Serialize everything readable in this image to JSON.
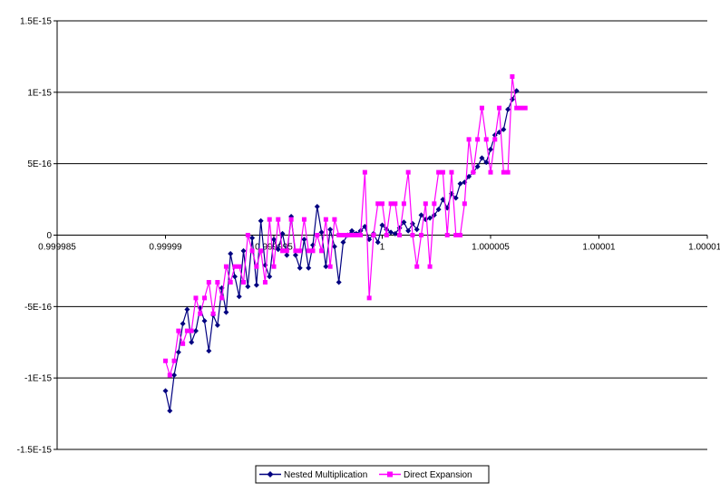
{
  "chart_data": {
    "type": "line",
    "title": "",
    "xlabel": "",
    "ylabel": "",
    "xlim": [
      0.999985,
      1.000015
    ],
    "ylim": [
      -1.5e-15,
      1.5e-15
    ],
    "x_ticks": [
      {
        "value": 0.999985,
        "label": "0.999985"
      },
      {
        "value": 0.99999,
        "label": "0.99999"
      },
      {
        "value": 0.999995,
        "label": "0.999995"
      },
      {
        "value": 1.0,
        "label": "1"
      },
      {
        "value": 1.000005,
        "label": "1.000005"
      },
      {
        "value": 1.00001,
        "label": "1.00001"
      },
      {
        "value": 1.000015,
        "label": "1.000015"
      }
    ],
    "y_ticks": [
      {
        "value": 1.5e-15,
        "label": "1.5E-15"
      },
      {
        "value": 1e-15,
        "label": "1E-15"
      },
      {
        "value": 5e-16,
        "label": "5E-16"
      },
      {
        "value": 0,
        "label": "0"
      },
      {
        "value": -5e-16,
        "label": "-5E-16"
      },
      {
        "value": -1e-15,
        "label": "-1E-15"
      },
      {
        "value": -1.5e-15,
        "label": "-1.5E-15"
      }
    ],
    "grid": "horizontal major gridlines",
    "legend_position": "bottom",
    "series": [
      {
        "name": "Nested Multiplication",
        "color": "#000080",
        "marker": "diamond",
        "points": [
          [
            0.99999,
            -1.09e-15
          ],
          [
            0.9999902,
            -1.23e-15
          ],
          [
            0.9999904,
            -9.8e-16
          ],
          [
            0.9999906,
            -8.2e-16
          ],
          [
            0.9999908,
            -6.2e-16
          ],
          [
            0.999991,
            -5.2e-16
          ],
          [
            0.9999912,
            -7.5e-16
          ],
          [
            0.9999914,
            -6.7e-16
          ],
          [
            0.9999916,
            -5.1e-16
          ],
          [
            0.9999918,
            -6e-16
          ],
          [
            0.999992,
            -8.1e-16
          ],
          [
            0.9999922,
            -5.6e-16
          ],
          [
            0.9999924,
            -6.3e-16
          ],
          [
            0.9999926,
            -3.7e-16
          ],
          [
            0.9999928,
            -5.4e-16
          ],
          [
            0.999993,
            -1.3e-16
          ],
          [
            0.9999932,
            -2.9e-16
          ],
          [
            0.9999934,
            -4.3e-16
          ],
          [
            0.9999936,
            -1.1e-16
          ],
          [
            0.9999938,
            -3.6e-16
          ],
          [
            0.999994,
            -2e-17
          ],
          [
            0.9999942,
            -3.5e-16
          ],
          [
            0.9999944,
            1e-16
          ],
          [
            0.9999946,
            -2.1e-16
          ],
          [
            0.9999948,
            -2.9e-16
          ],
          [
            0.999995,
            -3e-17
          ],
          [
            0.9999952,
            -1e-16
          ],
          [
            0.9999954,
            1e-17
          ],
          [
            0.9999956,
            -1.4e-16
          ],
          [
            0.9999958,
            1.3e-16
          ],
          [
            0.999996,
            -1.4e-16
          ],
          [
            0.9999962,
            -2.3e-16
          ],
          [
            0.9999964,
            -3e-17
          ],
          [
            0.9999966,
            -2.3e-16
          ],
          [
            0.9999968,
            -7e-17
          ],
          [
            0.999997,
            2e-16
          ],
          [
            0.9999972,
            2e-17
          ],
          [
            0.9999974,
            -2.2e-16
          ],
          [
            0.9999976,
            4e-17
          ],
          [
            0.9999978,
            -8e-17
          ],
          [
            0.999998,
            -3.3e-16
          ],
          [
            0.9999982,
            -5e-17
          ],
          [
            0.9999984,
            0
          ],
          [
            0.9999986,
            3e-17
          ],
          [
            0.9999988,
            1e-17
          ],
          [
            0.999999,
            3e-17
          ],
          [
            0.9999992,
            6e-17
          ],
          [
            0.9999994,
            -3e-17
          ],
          [
            0.9999996,
            1e-17
          ],
          [
            0.9999998,
            -5e-17
          ],
          [
            1.0,
            7e-17
          ],
          [
            1.0000002,
            4e-17
          ],
          [
            1.0000004,
            2e-17
          ],
          [
            1.0000006,
            1e-17
          ],
          [
            1.0000008,
            5e-17
          ],
          [
            1.000001,
            9e-17
          ],
          [
            1.0000012,
            3e-17
          ],
          [
            1.0000014,
            8e-17
          ],
          [
            1.0000016,
            4e-17
          ],
          [
            1.0000018,
            1.4e-16
          ],
          [
            1.000002,
            1.1e-16
          ],
          [
            1.0000022,
            1.2e-16
          ],
          [
            1.0000024,
            1.4e-16
          ],
          [
            1.0000026,
            1.8e-16
          ],
          [
            1.0000028,
            2.5e-16
          ],
          [
            1.000003,
            1.9e-16
          ],
          [
            1.0000032,
            2.9e-16
          ],
          [
            1.0000034,
            2.6e-16
          ],
          [
            1.0000036,
            3.6e-16
          ],
          [
            1.0000038,
            3.7e-16
          ],
          [
            1.000004,
            4.1e-16
          ],
          [
            1.0000042,
            4.4e-16
          ],
          [
            1.0000044,
            4.8e-16
          ],
          [
            1.0000046,
            5.4e-16
          ],
          [
            1.0000048,
            5.1e-16
          ],
          [
            1.000005,
            6e-16
          ],
          [
            1.0000052,
            7e-16
          ],
          [
            1.0000054,
            7.2e-16
          ],
          [
            1.0000056,
            7.4e-16
          ],
          [
            1.0000058,
            8.8e-16
          ],
          [
            1.000006,
            9.5e-16
          ],
          [
            1.0000062,
            1.01e-15
          ]
        ]
      },
      {
        "name": "Direct Expansion",
        "color": "#ff00ff",
        "marker": "square",
        "points": [
          [
            0.99999,
            -8.8e-16
          ],
          [
            0.9999902,
            -9.8e-16
          ],
          [
            0.9999904,
            -8.8e-16
          ],
          [
            0.9999906,
            -6.7e-16
          ],
          [
            0.9999908,
            -7.6e-16
          ],
          [
            0.999991,
            -6.7e-16
          ],
          [
            0.9999912,
            -6.7e-16
          ],
          [
            0.9999914,
            -4.4e-16
          ],
          [
            0.9999916,
            -5.5e-16
          ],
          [
            0.9999918,
            -4.4e-16
          ],
          [
            0.999992,
            -3.3e-16
          ],
          [
            0.9999922,
            -5.5e-16
          ],
          [
            0.9999924,
            -3.3e-16
          ],
          [
            0.9999926,
            -4.4e-16
          ],
          [
            0.9999928,
            -2.2e-16
          ],
          [
            0.999993,
            -3.3e-16
          ],
          [
            0.9999932,
            -2.2e-16
          ],
          [
            0.9999934,
            -2.2e-16
          ],
          [
            0.9999936,
            -3.3e-16
          ],
          [
            0.9999938,
            0
          ],
          [
            0.999994,
            -1.1e-16
          ],
          [
            0.9999942,
            -2.2e-16
          ],
          [
            0.9999944,
            -1.1e-16
          ],
          [
            0.9999946,
            -3.3e-16
          ],
          [
            0.9999948,
            1.1e-16
          ],
          [
            0.999995,
            -2.2e-16
          ],
          [
            0.9999952,
            1.1e-16
          ],
          [
            0.9999954,
            -1.1e-16
          ],
          [
            0.9999956,
            -1.1e-16
          ],
          [
            0.9999958,
            1.1e-16
          ],
          [
            0.999996,
            -1.1e-16
          ],
          [
            0.9999962,
            -1.1e-16
          ],
          [
            0.9999964,
            1.1e-16
          ],
          [
            0.9999966,
            -1.1e-16
          ],
          [
            0.9999968,
            -1.1e-16
          ],
          [
            0.999997,
            0
          ],
          [
            0.9999972,
            -1.1e-16
          ],
          [
            0.9999974,
            1.1e-16
          ],
          [
            0.9999976,
            -2.2e-16
          ],
          [
            0.9999978,
            1.1e-16
          ],
          [
            0.999998,
            0
          ],
          [
            0.9999982,
            0
          ],
          [
            0.9999984,
            0
          ],
          [
            0.9999986,
            0
          ],
          [
            0.9999988,
            0
          ],
          [
            0.999999,
            0
          ],
          [
            0.9999992,
            4.4e-16
          ],
          [
            0.9999994,
            -4.4e-16
          ],
          [
            0.9999996,
            0
          ],
          [
            0.9999998,
            2.2e-16
          ],
          [
            1.0,
            2.2e-16
          ],
          [
            1.0000002,
            0
          ],
          [
            1.0000004,
            2.2e-16
          ],
          [
            1.0000006,
            2.2e-16
          ],
          [
            1.0000008,
            0
          ],
          [
            1.000001,
            2.2e-16
          ],
          [
            1.0000012,
            4.4e-16
          ],
          [
            1.0000014,
            0
          ],
          [
            1.0000016,
            -2.2e-16
          ],
          [
            1.0000018,
            0
          ],
          [
            1.000002,
            2.2e-16
          ],
          [
            1.0000022,
            -2.2e-16
          ],
          [
            1.0000024,
            2.2e-16
          ],
          [
            1.0000026,
            4.4e-16
          ],
          [
            1.0000028,
            4.4e-16
          ],
          [
            1.000003,
            0
          ],
          [
            1.0000032,
            4.4e-16
          ],
          [
            1.0000034,
            0
          ],
          [
            1.0000036,
            0
          ],
          [
            1.0000038,
            2.2e-16
          ],
          [
            1.000004,
            6.7e-16
          ],
          [
            1.0000042,
            4.4e-16
          ],
          [
            1.0000044,
            6.7e-16
          ],
          [
            1.0000046,
            8.9e-16
          ],
          [
            1.0000048,
            6.7e-16
          ],
          [
            1.000005,
            4.4e-16
          ],
          [
            1.0000052,
            6.7e-16
          ],
          [
            1.0000054,
            8.9e-16
          ],
          [
            1.0000056,
            4.4e-16
          ],
          [
            1.0000058,
            4.4e-16
          ],
          [
            1.000006,
            1.11e-15
          ],
          [
            1.0000062,
            8.9e-16
          ],
          [
            1.0000064,
            8.9e-16
          ],
          [
            1.0000066,
            8.9e-16
          ]
        ]
      }
    ]
  }
}
